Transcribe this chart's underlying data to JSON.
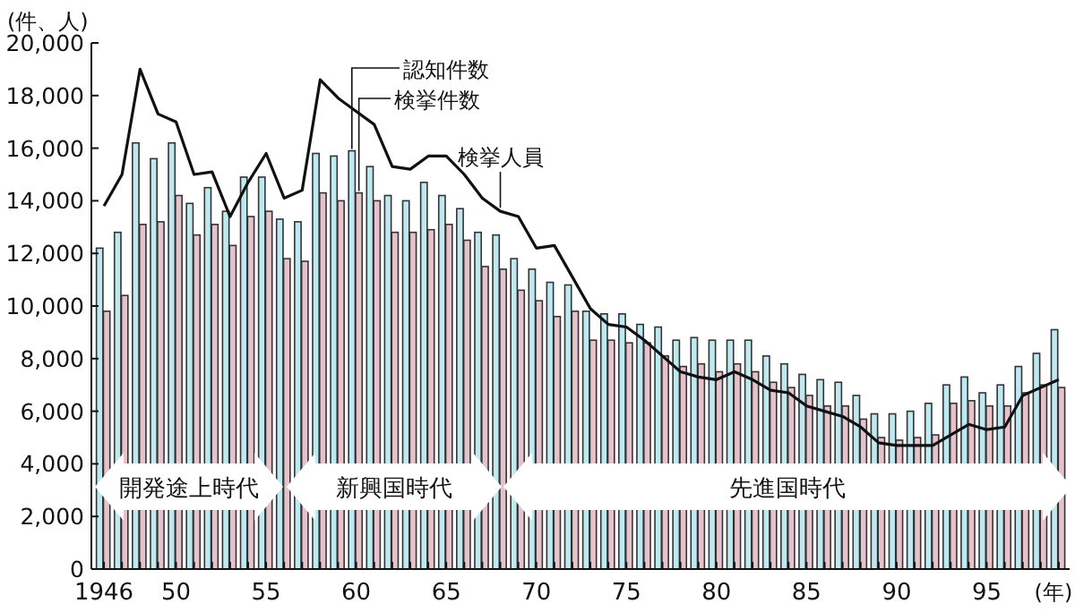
{
  "chart_data": {
    "type": "bar",
    "ylabel": "(件、人)",
    "xlabel": "(年)",
    "x": [
      1946,
      1947,
      1948,
      1949,
      1950,
      1951,
      1952,
      1953,
      1954,
      1955,
      1956,
      1957,
      1958,
      1959,
      1960,
      1961,
      1962,
      1963,
      1964,
      1965,
      1966,
      1967,
      1968,
      1969,
      1970,
      1971,
      1972,
      1973,
      1974,
      1975,
      1976,
      1977,
      1978,
      1979,
      1980,
      1981,
      1982,
      1983,
      1984,
      1985,
      1986,
      1987,
      1988,
      1989,
      1990,
      1991,
      1992,
      1993,
      1994,
      1995,
      1996,
      1997,
      1998,
      1999
    ],
    "series": [
      {
        "name": "認知件数",
        "color": "#bfe9f0",
        "values": [
          12200,
          12800,
          16200,
          15600,
          16200,
          13900,
          14500,
          13600,
          14900,
          14900,
          13300,
          13200,
          15800,
          15700,
          15900,
          15300,
          14200,
          14000,
          14700,
          14200,
          13700,
          12800,
          12700,
          11800,
          11400,
          10900,
          10800,
          9800,
          9700,
          9700,
          9300,
          9200,
          8700,
          8800,
          8700,
          8700,
          8700,
          8100,
          7800,
          7400,
          7200,
          7100,
          6600,
          5900,
          5900,
          6000,
          6300,
          7000,
          7300,
          6700,
          7000,
          7700,
          8200,
          9100
        ]
      },
      {
        "name": "検挙件数",
        "color": "#e6c3cc",
        "values": [
          9800,
          10400,
          13100,
          13200,
          14200,
          12700,
          13100,
          12300,
          13400,
          13600,
          11800,
          11700,
          14300,
          14000,
          14300,
          14000,
          12800,
          12800,
          12900,
          13100,
          12500,
          11500,
          11400,
          10600,
          10200,
          9600,
          9800,
          8700,
          8700,
          8600,
          8600,
          8100,
          7700,
          7800,
          7500,
          7800,
          7500,
          7100,
          6900,
          6600,
          6200,
          6200,
          5700,
          5000,
          4900,
          5000,
          5100,
          6300,
          6400,
          6200,
          6200,
          6700,
          7000,
          6900
        ]
      },
      {
        "name": "検挙人員",
        "type": "line",
        "color": "#111111",
        "values": [
          13800,
          15000,
          19000,
          17300,
          17000,
          15000,
          15100,
          13400,
          14700,
          15800,
          14100,
          14400,
          18600,
          17900,
          17400,
          16900,
          15300,
          15200,
          15700,
          15700,
          15000,
          14100,
          13600,
          13400,
          12200,
          12300,
          11100,
          9900,
          9300,
          9200,
          8700,
          8100,
          7500,
          7300,
          7200,
          7500,
          7200,
          6800,
          6700,
          6200,
          6000,
          5800,
          5400,
          4800,
          4700,
          4700,
          4700,
          5100,
          5500,
          5300,
          5400,
          6600,
          6900,
          7200
        ]
      }
    ],
    "xlim": [
      1945.3,
      1999.6
    ],
    "xticks": [
      1946,
      {
        "value": 1947,
        "label": null
      },
      {
        "value": 1948,
        "label": null
      },
      {
        "value": 1949,
        "label": null
      },
      {
        "value": 1950,
        "label": "50"
      },
      {
        "value": 1951,
        "label": null
      },
      {
        "value": 1952,
        "label": null
      },
      {
        "value": 1953,
        "label": null
      },
      {
        "value": 1954,
        "label": null
      },
      {
        "value": 1955,
        "label": "55"
      },
      {
        "value": 1956,
        "label": null
      },
      {
        "value": 1957,
        "label": null
      },
      {
        "value": 1958,
        "label": null
      },
      {
        "value": 1959,
        "label": null
      },
      {
        "value": 1960,
        "label": "60"
      },
      {
        "value": 1961,
        "label": null
      },
      {
        "value": 1962,
        "label": null
      },
      {
        "value": 1963,
        "label": null
      },
      {
        "value": 1964,
        "label": null
      },
      {
        "value": 1965,
        "label": "65"
      },
      {
        "value": 1966,
        "label": null
      },
      {
        "value": 1967,
        "label": null
      },
      {
        "value": 1968,
        "label": null
      },
      {
        "value": 1969,
        "label": null
      },
      {
        "value": 1970,
        "label": "70"
      },
      {
        "value": 1971,
        "label": null
      },
      {
        "value": 1972,
        "label": null
      },
      {
        "value": 1973,
        "label": null
      },
      {
        "value": 1974,
        "label": null
      },
      {
        "value": 1975,
        "label": "75"
      },
      {
        "value": 1976,
        "label": null
      },
      {
        "value": 1977,
        "label": null
      },
      {
        "value": 1978,
        "label": null
      },
      {
        "value": 1979,
        "label": null
      },
      {
        "value": 1980,
        "label": "80"
      },
      {
        "value": 1981,
        "label": null
      },
      {
        "value": 1982,
        "label": null
      },
      {
        "value": 1983,
        "label": null
      },
      {
        "value": 1984,
        "label": null
      },
      {
        "value": 1985,
        "label": "85"
      },
      {
        "value": 1986,
        "label": null
      },
      {
        "value": 1987,
        "label": null
      },
      {
        "value": 1988,
        "label": null
      },
      {
        "value": 1989,
        "label": null
      },
      {
        "value": 1990,
        "label": "90"
      },
      {
        "value": 1991,
        "label": null
      },
      {
        "value": 1992,
        "label": null
      },
      {
        "value": 1993,
        "label": null
      },
      {
        "value": 1994,
        "label": null
      },
      {
        "value": 1995,
        "label": "95"
      },
      {
        "value": 1996,
        "label": null
      },
      {
        "value": 1997,
        "label": null
      },
      {
        "value": 1998,
        "label": null
      },
      {
        "value": 1999,
        "label": null
      }
    ],
    "ylim": [
      0,
      20000
    ],
    "yticks": [
      {
        "value": 0,
        "label": "0"
      },
      {
        "value": 2000,
        "label": "2,000"
      },
      {
        "value": 4000,
        "label": "4,000"
      },
      {
        "value": 6000,
        "label": "6,000"
      },
      {
        "value": 8000,
        "label": "8,000"
      },
      {
        "value": 10000,
        "label": "10,000"
      },
      {
        "value": 12000,
        "label": "12,000"
      },
      {
        "value": 14000,
        "label": "14,000"
      },
      {
        "value": 16000,
        "label": "16,000"
      },
      {
        "value": 18000,
        "label": "18,000"
      },
      {
        "value": 20000,
        "label": "20,000"
      }
    ],
    "annotations": [
      "開発途上時代",
      "新興国時代",
      "先進国時代"
    ],
    "grid": false,
    "legend": false
  }
}
